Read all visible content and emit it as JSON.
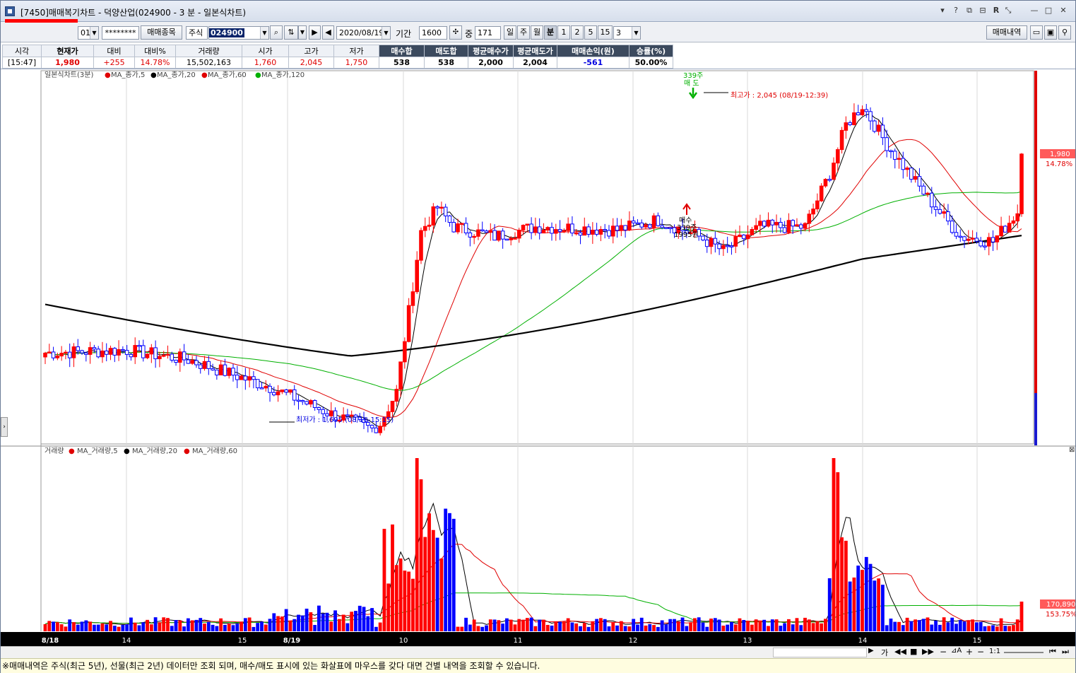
{
  "window": {
    "title": "[7450]매매복기차트 - 덕양산업(024900 - 3 분 - 일본식차트)"
  },
  "toolbar": {
    "account_suffix": "01",
    "password_mask": "********",
    "trade_item_button": "매매종목",
    "market_select": "주식",
    "code": "024900",
    "date": "2020/08/19",
    "period_label": "기간",
    "period_value": "1600",
    "count_label": "중",
    "count_value": "171",
    "tf_day": "일",
    "tf_week": "주",
    "tf_month": "월",
    "tf_minute": "분",
    "tf_1": "1",
    "tf_2": "2",
    "tf_5": "5",
    "tf_15": "15",
    "tf_select": "3",
    "trade_history_button": "매매내역"
  },
  "quote": {
    "headers": [
      "시각",
      "현재가",
      "대비",
      "대비%",
      "거래량",
      "시가",
      "고가",
      "저가",
      "매수합",
      "매도합",
      "평균매수가",
      "평균매도가",
      "매매손익(원)",
      "승률(%)"
    ],
    "values": [
      "[15:47]",
      "1,980",
      "+255",
      "14.78%",
      "15,502,163",
      "1,760",
      "2,045",
      "1,750",
      "538",
      "538",
      "2,000",
      "2,004",
      "-561",
      "50.00%"
    ]
  },
  "price_legend": {
    "title": "일본식차트(3분)",
    "ma5": "MA_종가,5",
    "ma20": "MA_종가,20",
    "ma60": "MA_종가,60",
    "ma120": "MA_종가,120"
  },
  "volume_legend": {
    "title": "거래량",
    "ma5": "MA_거래량,5",
    "ma20": "MA_거래량,20",
    "ma60": "MA_거래량,60"
  },
  "annotations": {
    "high": "최고가 : 2,045 (08/19-12:39)",
    "low": "최저가 : 1,695 (08/18-15:15)",
    "sell_qty": "339주",
    "sell_label": "매 도",
    "buy_label": "매수",
    "buy_qty": "339주",
    "buy_price": "1995원",
    "price_tag": "1,980",
    "price_pct": "14.78%",
    "vol_tag": "170,890",
    "vol_pct": "153.75%"
  },
  "x_labels": [
    "8/18",
    "14",
    "15",
    "8/19",
    "10",
    "11",
    "12",
    "13",
    "14",
    "15"
  ],
  "status": {
    "message": "※매매내역은 주식(최근 5년), 선물(최근 2년) 데이터만 조회 되며, 매수/매도 표시에 있는 화살표에 마우스를 갖다 대면 건별 내역을 조회할 수 있습니다.",
    "zoom": "1:1"
  },
  "colors": {
    "up": "#ff0000",
    "down": "#0000ff",
    "ma5": "#000000",
    "ma20": "#e00000",
    "ma60": "#00b000",
    "ma120": "#000000"
  },
  "chart_data": [
    {
      "type": "candlestick",
      "title": "일본식차트(3분)",
      "x_labels": [
        "8/18",
        "14",
        "15",
        "8/19",
        "10",
        "11",
        "12",
        "13",
        "14",
        "15"
      ],
      "y_range": [
        1690,
        2060
      ],
      "high": 2045,
      "low": 1695,
      "last": 1980,
      "series": [
        {
          "name": "MA_종가,5"
        },
        {
          "name": "MA_종가,20"
        },
        {
          "name": "MA_종가,60"
        },
        {
          "name": "MA_종가,120"
        }
      ]
    },
    {
      "type": "bar",
      "title": "거래량",
      "last_volume": 170890,
      "series": [
        {
          "name": "MA_거래량,5"
        },
        {
          "name": "MA_거래량,20"
        },
        {
          "name": "MA_거래량,60"
        }
      ]
    }
  ]
}
